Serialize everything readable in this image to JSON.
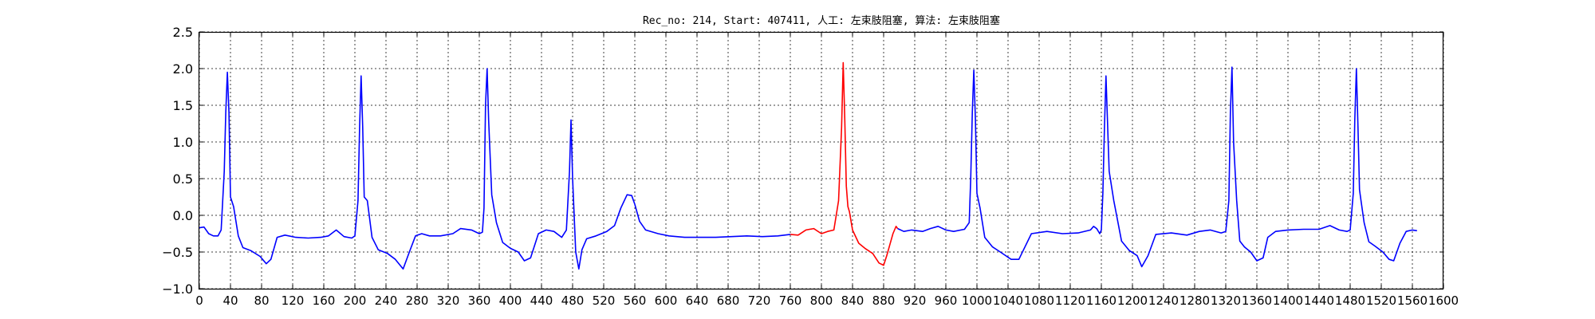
{
  "chart_data": {
    "type": "line",
    "title": "Rec_no: 214, Start: 407411, 人工: 左束肢阻塞, 算法: 左束肢阻塞",
    "xlabel": "",
    "ylabel": "",
    "xlim": [
      0,
      1600
    ],
    "ylim": [
      -1.0,
      2.5
    ],
    "grid": true,
    "y_ticks": [
      "−1.0",
      "−0.5",
      "0.0",
      "0.5",
      "1.0",
      "1.5",
      "2.0",
      "2.5"
    ],
    "x_tick_labels": [
      "0",
      "40",
      "80",
      "120",
      "160",
      "200",
      "240",
      "280",
      "320",
      "360",
      "400",
      "440",
      "480",
      "520",
      "560",
      "600",
      "640",
      "680",
      "720",
      "760",
      "800",
      "840",
      "880",
      "920",
      "960",
      "1000",
      "1040",
      "1080",
      "1120",
      "1160",
      "1200",
      "1240",
      "1280",
      "1320",
      "1360",
      "1400",
      "1440",
      "1480",
      "1520",
      "1560",
      "1600"
    ],
    "series": [
      {
        "color": "#0000ff",
        "x": [
          0,
          6,
          12,
          18,
          24,
          28,
          32,
          34,
          36,
          38,
          40,
          44,
          50,
          56,
          66,
          78,
          86,
          92,
          100,
          110,
          124,
          140,
          156,
          166,
          176,
          186,
          196,
          200,
          204,
          206,
          208,
          210,
          212,
          216,
          222,
          230,
          242,
          252,
          262,
          270,
          278,
          286,
          296,
          310,
          326,
          336,
          350,
          360,
          364,
          366,
          368,
          370,
          372,
          376,
          382,
          390,
          400,
          410,
          418,
          426,
          436,
          446,
          456,
          466,
          472,
          476,
          478,
          480,
          484,
          488,
          492,
          498,
          510,
          524,
          534,
          542,
          550,
          556,
          560,
          566,
          574,
          590,
          604,
          614,
          624,
          644,
          664,
          684,
          704,
          724,
          744,
          760
        ],
        "y": [
          -0.17,
          -0.16,
          -0.25,
          -0.28,
          -0.28,
          -0.2,
          0.6,
          1.4,
          1.95,
          1.4,
          0.25,
          0.12,
          -0.28,
          -0.44,
          -0.48,
          -0.56,
          -0.66,
          -0.6,
          -0.3,
          -0.27,
          -0.3,
          -0.31,
          -0.3,
          -0.28,
          -0.2,
          -0.29,
          -0.31,
          -0.28,
          0.2,
          1.2,
          1.9,
          1.2,
          0.25,
          0.2,
          -0.3,
          -0.47,
          -0.52,
          -0.6,
          -0.73,
          -0.5,
          -0.28,
          -0.25,
          -0.28,
          -0.28,
          -0.25,
          -0.18,
          -0.2,
          -0.25,
          -0.23,
          0.1,
          1.5,
          2.0,
          1.3,
          0.28,
          -0.1,
          -0.37,
          -0.45,
          -0.5,
          -0.62,
          -0.58,
          -0.25,
          -0.2,
          -0.22,
          -0.3,
          -0.2,
          0.6,
          1.3,
          0.5,
          -0.5,
          -0.73,
          -0.47,
          -0.32,
          -0.28,
          -0.22,
          -0.14,
          0.1,
          0.28,
          0.27,
          0.15,
          -0.08,
          -0.2,
          -0.25,
          -0.28,
          -0.29,
          -0.3,
          -0.3,
          -0.3,
          -0.29,
          -0.28,
          -0.29,
          -0.28,
          -0.26
        ]
      },
      {
        "color": "#ff0000",
        "x": [
          760,
          770,
          780,
          790,
          800,
          808,
          816,
          822,
          826,
          828,
          830,
          832,
          834,
          836,
          840,
          848,
          856,
          866,
          874,
          880,
          884,
          888,
          892,
          896,
          898
        ],
        "y": [
          -0.26,
          -0.27,
          -0.2,
          -0.18,
          -0.25,
          -0.22,
          -0.2,
          0.2,
          1.2,
          2.08,
          1.3,
          0.4,
          0.12,
          0.05,
          -0.2,
          -0.38,
          -0.45,
          -0.52,
          -0.65,
          -0.68,
          -0.55,
          -0.4,
          -0.25,
          -0.15,
          -0.18
        ]
      },
      {
        "color": "#0000ff",
        "x": [
          898,
          906,
          916,
          930,
          940,
          950,
          960,
          970,
          984,
          990,
          992,
          994,
          996,
          998,
          1000,
          1004,
          1010,
          1020,
          1030,
          1044,
          1054,
          1070,
          1090,
          1110,
          1130,
          1146,
          1150,
          1154,
          1158,
          1160,
          1162,
          1164,
          1166,
          1170,
          1176,
          1186,
          1196,
          1206,
          1212,
          1220,
          1230,
          1250,
          1270,
          1286,
          1300,
          1314,
          1320,
          1324,
          1326,
          1328,
          1330,
          1334,
          1338,
          1344,
          1352,
          1360,
          1368,
          1374,
          1384,
          1400,
          1420,
          1440,
          1454,
          1466,
          1476,
          1480,
          1484,
          1486,
          1488,
          1490,
          1492,
          1494,
          1498,
          1504,
          1512,
          1522,
          1530,
          1536,
          1544,
          1552,
          1560,
          1566
        ],
        "y": [
          -0.18,
          -0.22,
          -0.2,
          -0.22,
          -0.18,
          -0.15,
          -0.2,
          -0.22,
          -0.19,
          -0.1,
          0.5,
          1.4,
          1.98,
          1.3,
          0.3,
          0.1,
          -0.3,
          -0.43,
          -0.5,
          -0.6,
          -0.6,
          -0.25,
          -0.22,
          -0.25,
          -0.24,
          -0.2,
          -0.15,
          -0.18,
          -0.25,
          -0.2,
          0.3,
          1.2,
          1.9,
          0.6,
          0.2,
          -0.35,
          -0.48,
          -0.55,
          -0.7,
          -0.55,
          -0.26,
          -0.24,
          -0.27,
          -0.22,
          -0.2,
          -0.24,
          -0.22,
          0.2,
          1.4,
          2.02,
          1.0,
          0.2,
          -0.35,
          -0.43,
          -0.5,
          -0.62,
          -0.58,
          -0.3,
          -0.22,
          -0.2,
          -0.19,
          -0.19,
          -0.14,
          -0.2,
          -0.22,
          -0.2,
          0.3,
          1.3,
          2.0,
          1.2,
          0.35,
          0.2,
          -0.1,
          -0.36,
          -0.42,
          -0.5,
          -0.6,
          -0.62,
          -0.38,
          -0.22,
          -0.2,
          -0.21
        ]
      }
    ]
  }
}
